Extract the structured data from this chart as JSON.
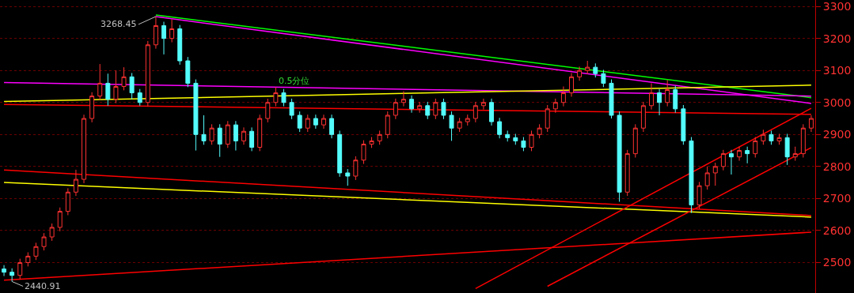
{
  "chart_data": {
    "type": "candlestick",
    "categories": [
      null,
      null,
      null,
      null,
      null,
      null,
      null,
      null,
      null,
      null,
      null,
      null,
      null,
      null,
      null,
      null,
      null,
      null,
      null,
      null,
      null,
      null,
      null,
      null,
      null,
      null,
      null,
      null,
      null,
      null,
      null,
      null,
      null,
      null,
      null,
      null,
      null,
      null,
      null,
      null,
      null,
      null,
      null,
      null,
      null,
      null,
      null,
      null,
      null,
      null,
      null,
      null,
      null,
      null,
      null,
      null,
      null,
      null,
      null,
      null,
      null,
      null,
      null,
      null,
      null,
      null,
      null,
      null,
      null,
      null,
      null,
      null,
      null,
      null,
      null,
      null,
      null,
      null,
      null,
      null,
      null,
      null,
      null,
      null,
      null,
      null,
      null,
      null,
      null,
      null,
      null,
      null,
      null,
      null,
      null,
      null,
      null,
      null,
      null,
      null,
      null,
      null
    ],
    "ohlc": [
      [
        2480,
        2492,
        2458,
        2470
      ],
      [
        2470,
        2482,
        2440.91,
        2460
      ],
      [
        2460,
        2512,
        2448,
        2500
      ],
      [
        2500,
        2532,
        2488,
        2520
      ],
      [
        2520,
        2562,
        2508,
        2550
      ],
      [
        2550,
        2592,
        2538,
        2580
      ],
      [
        2580,
        2622,
        2568,
        2610
      ],
      [
        2610,
        2672,
        2598,
        2660
      ],
      [
        2660,
        2732,
        2648,
        2720
      ],
      [
        2720,
        2790,
        2708,
        2760
      ],
      [
        2760,
        2962,
        2748,
        2950
      ],
      [
        2950,
        3032,
        2938,
        3020
      ],
      [
        3020,
        3120,
        3008,
        3060
      ],
      [
        3060,
        3090,
        2990,
        3010
      ],
      [
        3010,
        3100,
        2998,
        3050
      ],
      [
        3050,
        3110,
        3038,
        3080
      ],
      [
        3080,
        3092,
        3010,
        3030
      ],
      [
        3030,
        3042,
        2990,
        3000
      ],
      [
        3000,
        3192,
        2988,
        3180
      ],
      [
        3180,
        3268.45,
        3168,
        3240
      ],
      [
        3240,
        3252,
        3150,
        3200
      ],
      [
        3200,
        3260,
        3188,
        3230
      ],
      [
        3230,
        3242,
        3118,
        3130
      ],
      [
        3130,
        3142,
        3048,
        3060
      ],
      [
        3060,
        3072,
        2850,
        2900
      ],
      [
        2900,
        2960,
        2868,
        2880
      ],
      [
        2880,
        2932,
        2868,
        2920
      ],
      [
        2920,
        2932,
        2830,
        2870
      ],
      [
        2870,
        2942,
        2858,
        2930
      ],
      [
        2930,
        2942,
        2850,
        2880
      ],
      [
        2880,
        2922,
        2868,
        2910
      ],
      [
        2910,
        2922,
        2848,
        2860
      ],
      [
        2860,
        2962,
        2848,
        2950
      ],
      [
        2950,
        3012,
        2938,
        3000
      ],
      [
        3000,
        3048,
        2988,
        3030
      ],
      [
        3030,
        3042,
        2988,
        3000
      ],
      [
        3000,
        3012,
        2948,
        2960
      ],
      [
        2960,
        2972,
        2908,
        2920
      ],
      [
        2920,
        2962,
        2908,
        2950
      ],
      [
        2950,
        2962,
        2918,
        2930
      ],
      [
        2930,
        2962,
        2918,
        2950
      ],
      [
        2950,
        2962,
        2888,
        2900
      ],
      [
        2900,
        2912,
        2768,
        2780
      ],
      [
        2780,
        2792,
        2740,
        2770
      ],
      [
        2770,
        2832,
        2758,
        2820
      ],
      [
        2820,
        2882,
        2808,
        2870
      ],
      [
        2870,
        2892,
        2858,
        2880
      ],
      [
        2880,
        2912,
        2868,
        2900
      ],
      [
        2900,
        2972,
        2888,
        2960
      ],
      [
        2960,
        3012,
        2948,
        3000
      ],
      [
        3000,
        3035,
        2988,
        3010
      ],
      [
        3010,
        3022,
        2968,
        2980
      ],
      [
        2980,
        3002,
        2968,
        2990
      ],
      [
        2990,
        3002,
        2948,
        2960
      ],
      [
        2960,
        3012,
        2948,
        3000
      ],
      [
        3000,
        3012,
        2948,
        2960
      ],
      [
        2960,
        2972,
        2880,
        2920
      ],
      [
        2920,
        2952,
        2908,
        2940
      ],
      [
        2940,
        2962,
        2928,
        2950
      ],
      [
        2950,
        3002,
        2938,
        2990
      ],
      [
        2990,
        3012,
        2978,
        3000
      ],
      [
        3000,
        3012,
        2928,
        2940
      ],
      [
        2940,
        2952,
        2888,
        2900
      ],
      [
        2900,
        2912,
        2878,
        2890
      ],
      [
        2890,
        2902,
        2868,
        2880
      ],
      [
        2880,
        2892,
        2848,
        2860
      ],
      [
        2860,
        2912,
        2848,
        2900
      ],
      [
        2900,
        2932,
        2888,
        2920
      ],
      [
        2920,
        2992,
        2908,
        2980
      ],
      [
        2980,
        3012,
        2968,
        3000
      ],
      [
        3000,
        3050,
        2988,
        3030
      ],
      [
        3030,
        3092,
        3018,
        3080
      ],
      [
        3080,
        3112,
        3068,
        3100
      ],
      [
        3100,
        3130,
        3088,
        3110
      ],
      [
        3110,
        3122,
        3078,
        3090
      ],
      [
        3090,
        3102,
        3048,
        3060
      ],
      [
        3060,
        3072,
        2950,
        2960
      ],
      [
        2960,
        2972,
        2690,
        2720
      ],
      [
        2720,
        2852,
        2708,
        2840
      ],
      [
        2840,
        2932,
        2828,
        2920
      ],
      [
        2920,
        3002,
        2908,
        2990
      ],
      [
        2990,
        3060,
        2978,
        3030
      ],
      [
        3030,
        3042,
        2960,
        3000
      ],
      [
        3000,
        3070,
        2988,
        3040
      ],
      [
        3040,
        3052,
        2968,
        2980
      ],
      [
        2980,
        2992,
        2868,
        2880
      ],
      [
        2880,
        2892,
        2655,
        2680
      ],
      [
        2680,
        2752,
        2668,
        2740
      ],
      [
        2740,
        2800,
        2728,
        2780
      ],
      [
        2780,
        2812,
        2740,
        2800
      ],
      [
        2800,
        2852,
        2788,
        2840
      ],
      [
        2840,
        2852,
        2775,
        2830
      ],
      [
        2830,
        2862,
        2818,
        2850
      ],
      [
        2850,
        2862,
        2810,
        2840
      ],
      [
        2840,
        2892,
        2828,
        2880
      ],
      [
        2880,
        2915,
        2868,
        2900
      ],
      [
        2900,
        2912,
        2868,
        2880
      ],
      [
        2880,
        2902,
        2868,
        2890
      ],
      [
        2890,
        2902,
        2805,
        2830
      ],
      [
        2830,
        2862,
        2818,
        2840
      ],
      [
        2840,
        2932,
        2828,
        2920
      ],
      [
        2920,
        2960,
        2908,
        2950
      ]
    ],
    "colors": [
      "#54fcfc",
      "#54fcfc",
      "#ff3232",
      "#ff3232",
      "#ff3232",
      "#ff3232",
      "#ff3232",
      "#ff3232",
      "#ff3232",
      "#ff3232",
      "#ff3232",
      "#ff3232",
      "#ff3232",
      "#54fcfc",
      "#ff3232",
      "#ff3232",
      "#54fcfc",
      "#54fcfc",
      "#ff3232",
      "#ff3232",
      "#54fcfc",
      "#ff3232",
      "#54fcfc",
      "#54fcfc",
      "#54fcfc",
      "#54fcfc",
      "#ff3232",
      "#54fcfc",
      "#ff3232",
      "#54fcfc",
      "#ff3232",
      "#54fcfc",
      "#ff3232",
      "#ff3232",
      "#ff3232",
      "#54fcfc",
      "#54fcfc",
      "#54fcfc",
      "#ff3232",
      "#54fcfc",
      "#ff3232",
      "#54fcfc",
      "#54fcfc",
      "#54fcfc",
      "#ff3232",
      "#ff3232",
      "#ff3232",
      "#ff3232",
      "#ff3232",
      "#ff3232",
      "#ff3232",
      "#54fcfc",
      "#ff3232",
      "#54fcfc",
      "#ff3232",
      "#54fcfc",
      "#54fcfc",
      "#ff3232",
      "#ff3232",
      "#ff3232",
      "#ff3232",
      "#54fcfc",
      "#54fcfc",
      "#54fcfc",
      "#54fcfc",
      "#54fcfc",
      "#ff3232",
      "#ff3232",
      "#ff3232",
      "#ff3232",
      "#ff3232",
      "#ff3232",
      "#ff3232",
      "#ff3232",
      "#54fcfc",
      "#54fcfc",
      "#54fcfc",
      "#54fcfc",
      "#ff3232",
      "#ff3232",
      "#ff3232",
      "#ff3232",
      "#54fcfc",
      "#ff3232",
      "#54fcfc",
      "#54fcfc",
      "#54fcfc",
      "#ff3232",
      "#ff3232",
      "#ff3232",
      "#ff3232",
      "#54fcfc",
      "#ff3232",
      "#54fcfc",
      "#ff3232",
      "#ff3232",
      "#54fcfc",
      "#ff3232",
      "#54fcfc",
      "#ff3232",
      "#ff3232",
      "#ff3232"
    ],
    "series": [
      {
        "type": "line",
        "color": "#00ff00",
        "values": [
          null,
          null,
          null,
          null,
          null,
          null,
          null,
          null,
          null,
          null,
          null,
          null,
          null,
          null,
          null,
          null,
          null,
          null,
          null,
          3273,
          null,
          null,
          null,
          null,
          null,
          null,
          null,
          null,
          null,
          null,
          null,
          null,
          null,
          null,
          null,
          null,
          null,
          null,
          null,
          null,
          null,
          null,
          null,
          null,
          null,
          null,
          null,
          null,
          null,
          null,
          null,
          null,
          null,
          null,
          null,
          null,
          null,
          null,
          null,
          null,
          null,
          null,
          null,
          null,
          null,
          null,
          null,
          null,
          null,
          null,
          null,
          null,
          null,
          null,
          null,
          null,
          null,
          null,
          null,
          null,
          null,
          null,
          null,
          null,
          null,
          null,
          null,
          null,
          null,
          null,
          null,
          null,
          null,
          null,
          null,
          null,
          null,
          null,
          null,
          null,
          null,
          3015
        ]
      },
      {
        "type": "line",
        "color": "#ff00ff",
        "values": [
          null,
          null,
          null,
          null,
          null,
          null,
          null,
          null,
          null,
          null,
          null,
          null,
          null,
          null,
          null,
          null,
          null,
          null,
          null,
          3268,
          null,
          null,
          null,
          null,
          null,
          null,
          null,
          null,
          null,
          null,
          null,
          null,
          null,
          null,
          null,
          null,
          null,
          null,
          null,
          null,
          null,
          null,
          null,
          null,
          null,
          null,
          null,
          null,
          null,
          null,
          null,
          null,
          null,
          null,
          null,
          null,
          null,
          null,
          null,
          null,
          null,
          null,
          null,
          null,
          null,
          null,
          null,
          null,
          null,
          null,
          null,
          null,
          null,
          null,
          null,
          null,
          null,
          null,
          null,
          null,
          null,
          null,
          null,
          null,
          null,
          null,
          null,
          null,
          null,
          null,
          null,
          null,
          null,
          null,
          null,
          null,
          null,
          null,
          null,
          null,
          null,
          2997
        ]
      },
      {
        "type": "line",
        "name": "0.5分位",
        "color": "#ff00ff",
        "values": [
          3062,
          null,
          null,
          null,
          null,
          null,
          null,
          null,
          null,
          null,
          null,
          null,
          null,
          null,
          null,
          null,
          null,
          null,
          null,
          null,
          null,
          null,
          null,
          null,
          null,
          null,
          null,
          null,
          null,
          null,
          null,
          null,
          null,
          null,
          null,
          null,
          null,
          null,
          null,
          null,
          null,
          null,
          null,
          null,
          null,
          null,
          null,
          null,
          null,
          null,
          null,
          null,
          null,
          null,
          null,
          null,
          null,
          null,
          null,
          null,
          null,
          null,
          null,
          null,
          null,
          null,
          null,
          null,
          null,
          null,
          null,
          null,
          null,
          null,
          null,
          null,
          null,
          null,
          null,
          null,
          null,
          null,
          null,
          null,
          null,
          null,
          null,
          null,
          null,
          null,
          null,
          null,
          null,
          null,
          null,
          null,
          null,
          null,
          null,
          null,
          null,
          3020
        ]
      },
      {
        "type": "line",
        "color": "#ffff00",
        "values": [
          3003,
          null,
          null,
          null,
          null,
          null,
          null,
          null,
          null,
          null,
          null,
          null,
          null,
          null,
          null,
          null,
          null,
          null,
          null,
          null,
          null,
          null,
          null,
          null,
          null,
          null,
          null,
          null,
          null,
          null,
          null,
          null,
          null,
          null,
          null,
          null,
          null,
          null,
          null,
          null,
          null,
          null,
          null,
          null,
          null,
          null,
          null,
          null,
          null,
          null,
          null,
          null,
          null,
          null,
          null,
          null,
          null,
          null,
          null,
          null,
          null,
          null,
          null,
          null,
          null,
          null,
          null,
          null,
          null,
          null,
          null,
          null,
          null,
          null,
          null,
          null,
          null,
          null,
          null,
          null,
          null,
          null,
          null,
          null,
          null,
          null,
          null,
          null,
          null,
          null,
          null,
          null,
          null,
          null,
          null,
          null,
          null,
          null,
          null,
          null,
          null,
          3054
        ]
      },
      {
        "type": "line",
        "color": "#ff0000",
        "values": [
          2994,
          null,
          null,
          null,
          null,
          null,
          null,
          null,
          null,
          null,
          null,
          null,
          null,
          null,
          null,
          null,
          null,
          null,
          null,
          null,
          null,
          null,
          null,
          null,
          null,
          null,
          null,
          null,
          null,
          null,
          null,
          null,
          null,
          null,
          null,
          null,
          null,
          null,
          null,
          null,
          null,
          null,
          null,
          null,
          null,
          null,
          null,
          null,
          null,
          null,
          null,
          null,
          null,
          null,
          null,
          null,
          null,
          null,
          null,
          null,
          null,
          null,
          null,
          null,
          null,
          null,
          null,
          null,
          null,
          null,
          null,
          null,
          null,
          null,
          null,
          null,
          null,
          null,
          null,
          null,
          null,
          null,
          null,
          null,
          null,
          null,
          null,
          null,
          null,
          null,
          null,
          null,
          null,
          null,
          null,
          null,
          null,
          null,
          null,
          null,
          null,
          2963
        ]
      },
      {
        "type": "line",
        "color": "#ff0000",
        "values": [
          2789,
          null,
          null,
          null,
          null,
          null,
          null,
          null,
          null,
          null,
          null,
          null,
          null,
          null,
          null,
          null,
          null,
          null,
          null,
          null,
          null,
          null,
          null,
          null,
          null,
          null,
          null,
          null,
          null,
          null,
          null,
          null,
          null,
          null,
          null,
          null,
          null,
          null,
          null,
          null,
          null,
          null,
          null,
          null,
          null,
          null,
          null,
          null,
          null,
          null,
          null,
          null,
          null,
          null,
          null,
          null,
          null,
          null,
          null,
          null,
          null,
          null,
          null,
          null,
          null,
          null,
          null,
          null,
          null,
          null,
          null,
          null,
          null,
          null,
          null,
          null,
          null,
          null,
          null,
          null,
          null,
          null,
          null,
          null,
          null,
          null,
          null,
          null,
          null,
          null,
          null,
          null,
          null,
          null,
          null,
          null,
          null,
          null,
          null,
          null,
          null,
          2647
        ]
      },
      {
        "type": "line",
        "color": "#ffff00",
        "values": [
          2750,
          null,
          null,
          null,
          null,
          null,
          null,
          null,
          null,
          null,
          null,
          null,
          null,
          null,
          null,
          null,
          null,
          null,
          null,
          null,
          null,
          null,
          null,
          null,
          null,
          null,
          null,
          null,
          null,
          null,
          null,
          null,
          null,
          null,
          null,
          null,
          null,
          null,
          null,
          null,
          null,
          null,
          null,
          null,
          null,
          null,
          null,
          null,
          null,
          null,
          null,
          null,
          null,
          null,
          null,
          null,
          null,
          null,
          null,
          null,
          null,
          null,
          null,
          null,
          null,
          null,
          null,
          null,
          null,
          null,
          null,
          null,
          null,
          null,
          null,
          null,
          null,
          null,
          null,
          null,
          null,
          null,
          null,
          null,
          null,
          null,
          null,
          null,
          null,
          null,
          null,
          null,
          null,
          null,
          null,
          null,
          null,
          null,
          null,
          null,
          null,
          2642
        ]
      },
      {
        "type": "line",
        "color": "#ff0000",
        "values": [
          2445,
          null,
          null,
          null,
          null,
          null,
          null,
          null,
          null,
          null,
          null,
          null,
          null,
          null,
          null,
          null,
          null,
          null,
          null,
          null,
          null,
          null,
          null,
          null,
          null,
          null,
          null,
          null,
          null,
          null,
          null,
          null,
          null,
          null,
          null,
          null,
          null,
          null,
          null,
          null,
          null,
          null,
          null,
          null,
          null,
          null,
          null,
          null,
          null,
          null,
          null,
          null,
          null,
          null,
          null,
          null,
          null,
          null,
          null,
          null,
          null,
          null,
          null,
          null,
          null,
          null,
          null,
          null,
          null,
          null,
          null,
          null,
          null,
          null,
          null,
          null,
          null,
          null,
          null,
          null,
          null,
          null,
          null,
          null,
          null,
          null,
          null,
          null,
          null,
          null,
          null,
          null,
          null,
          null,
          null,
          null,
          null,
          null,
          null,
          null,
          null,
          2595
        ]
      },
      {
        "type": "line",
        "color": "#ff0000",
        "values": [
          null,
          null,
          null,
          null,
          null,
          null,
          null,
          null,
          null,
          null,
          null,
          null,
          null,
          null,
          null,
          null,
          null,
          null,
          null,
          null,
          null,
          null,
          null,
          null,
          null,
          null,
          null,
          null,
          null,
          null,
          null,
          null,
          null,
          null,
          null,
          null,
          null,
          null,
          null,
          null,
          null,
          null,
          null,
          null,
          null,
          null,
          null,
          null,
          null,
          null,
          null,
          null,
          null,
          null,
          null,
          null,
          null,
          null,
          null,
          2419,
          null,
          null,
          null,
          null,
          null,
          null,
          null,
          null,
          null,
          null,
          null,
          null,
          null,
          null,
          null,
          null,
          null,
          null,
          null,
          null,
          null,
          null,
          null,
          null,
          null,
          null,
          null,
          null,
          null,
          null,
          null,
          null,
          null,
          null,
          null,
          null,
          null,
          null,
          null,
          null,
          null,
          2982
        ]
      },
      {
        "type": "line",
        "color": "#ff0000",
        "values": [
          null,
          null,
          null,
          null,
          null,
          null,
          null,
          null,
          null,
          null,
          null,
          null,
          null,
          null,
          null,
          null,
          null,
          null,
          null,
          null,
          null,
          null,
          null,
          null,
          null,
          null,
          null,
          null,
          null,
          null,
          null,
          null,
          null,
          null,
          null,
          null,
          null,
          null,
          null,
          null,
          null,
          null,
          null,
          null,
          null,
          null,
          null,
          null,
          null,
          null,
          null,
          null,
          null,
          null,
          null,
          null,
          null,
          null,
          null,
          null,
          null,
          null,
          null,
          null,
          null,
          null,
          null,
          null,
          2426,
          null,
          null,
          null,
          null,
          null,
          null,
          null,
          null,
          null,
          null,
          null,
          null,
          null,
          null,
          null,
          null,
          null,
          null,
          null,
          null,
          null,
          null,
          null,
          null,
          null,
          null,
          null,
          null,
          null,
          null,
          null,
          null,
          2859
        ]
      }
    ],
    "annotations": [
      "3268.45",
      "2440.91"
    ],
    "ylim": [
      2405,
      3320
    ],
    "yticks": [
      2500,
      2600,
      2700,
      2800,
      2900,
      3000,
      3100,
      3200,
      3300
    ],
    "tick_labels": "y",
    "grid": "y"
  }
}
